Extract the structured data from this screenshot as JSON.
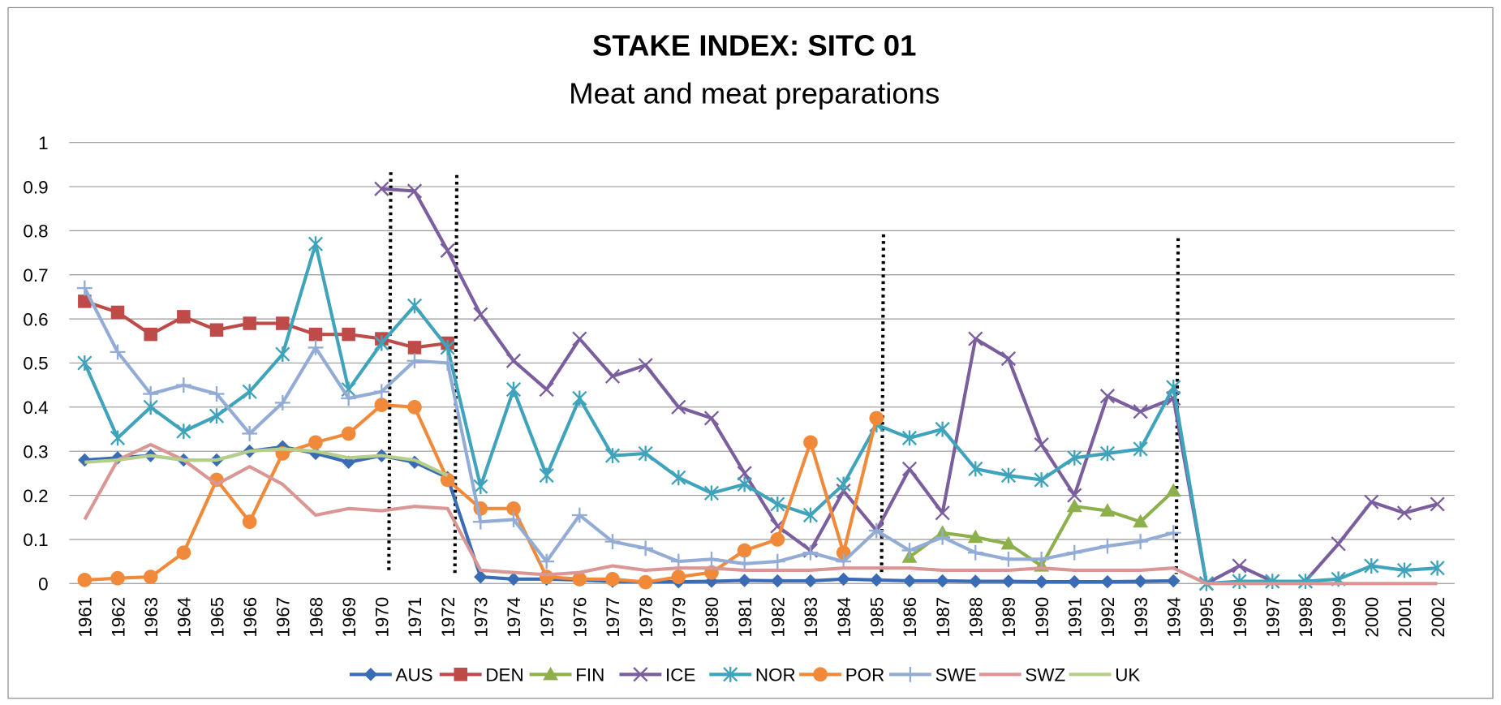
{
  "chart_data": {
    "type": "line",
    "title": "STAKE INDEX: SITC 01",
    "subtitle": "Meat and meat preparations",
    "categories": [
      "1961",
      "1962",
      "1963",
      "1964",
      "1965",
      "1966",
      "1967",
      "1968",
      "1969",
      "1970",
      "1971",
      "1972",
      "1973",
      "1974",
      "1975",
      "1976",
      "1977",
      "1978",
      "1979",
      "1980",
      "1981",
      "1982",
      "1983",
      "1984",
      "1985",
      "1986",
      "1987",
      "1988",
      "1989",
      "1990",
      "1991",
      "1992",
      "1993",
      "1994",
      "1995",
      "1996",
      "1997",
      "1998",
      "1999",
      "2000",
      "2001",
      "2002"
    ],
    "ylim": [
      0,
      1
    ],
    "yticks": [
      0,
      0.1,
      0.2,
      0.3,
      0.4,
      0.5,
      0.6,
      0.7,
      0.8,
      0.9,
      1
    ],
    "grid": true,
    "legend": "bottom",
    "series": [
      {
        "name": "AUS",
        "color": "#3a6bb5",
        "marker": "diamond",
        "values": [
          0.28,
          0.285,
          0.29,
          0.28,
          0.28,
          0.3,
          0.31,
          0.295,
          0.275,
          0.29,
          0.275,
          0.24,
          0.015,
          0.01,
          0.01,
          0.008,
          0.005,
          0.004,
          0.004,
          0.005,
          0.007,
          0.006,
          0.006,
          0.01,
          0.008,
          0.006,
          0.006,
          0.005,
          0.005,
          0.004,
          0.004,
          0.004,
          0.005,
          0.006,
          null,
          null,
          null,
          null,
          null,
          null,
          null,
          null
        ]
      },
      {
        "name": "DEN",
        "color": "#be4b48",
        "marker": "square",
        "values": [
          0.64,
          0.615,
          0.565,
          0.605,
          0.575,
          0.59,
          0.59,
          0.565,
          0.565,
          0.555,
          0.535,
          0.545,
          null,
          null,
          null,
          null,
          null,
          null,
          null,
          null,
          null,
          null,
          null,
          null,
          null,
          null,
          null,
          null,
          null,
          null,
          null,
          null,
          null,
          null,
          null,
          null,
          null,
          null,
          null,
          null,
          null,
          null
        ]
      },
      {
        "name": "FIN",
        "color": "#8db04d",
        "marker": "triangle",
        "values": [
          null,
          null,
          null,
          null,
          null,
          null,
          null,
          null,
          null,
          null,
          null,
          null,
          null,
          null,
          null,
          null,
          null,
          null,
          null,
          null,
          null,
          null,
          null,
          null,
          null,
          0.06,
          0.115,
          0.105,
          0.09,
          0.04,
          0.175,
          0.165,
          0.14,
          0.21,
          null,
          null,
          null,
          null,
          null,
          null,
          null,
          null
        ]
      },
      {
        "name": "ICE",
        "color": "#7b5e9e",
        "marker": "x",
        "values": [
          null,
          null,
          null,
          null,
          null,
          null,
          null,
          null,
          null,
          0.895,
          0.89,
          0.755,
          0.61,
          0.505,
          0.44,
          0.555,
          0.47,
          0.495,
          0.4,
          0.375,
          0.25,
          0.13,
          0.075,
          0.21,
          0.12,
          0.26,
          0.16,
          0.555,
          0.51,
          0.315,
          0.2,
          0.425,
          0.39,
          0.42,
          0,
          0.04,
          0.005,
          0.005,
          0.09,
          0.185,
          0.16,
          0.18
        ]
      },
      {
        "name": "NOR",
        "color": "#3fa3bb",
        "marker": "asterisk",
        "values": [
          0.5,
          0.33,
          0.4,
          0.345,
          0.38,
          0.435,
          0.52,
          0.77,
          0.44,
          0.545,
          0.63,
          0.535,
          0.22,
          0.44,
          0.245,
          0.42,
          0.29,
          0.295,
          0.24,
          0.205,
          0.225,
          0.18,
          0.155,
          0.225,
          0.36,
          0.33,
          0.35,
          0.26,
          0.245,
          0.235,
          0.285,
          0.295,
          0.305,
          0.445,
          0,
          0.005,
          0.005,
          0.005,
          0.01,
          0.04,
          0.03,
          0.035
        ]
      },
      {
        "name": "POR",
        "color": "#f08a3a",
        "marker": "circle",
        "values": [
          0.008,
          0.012,
          0.015,
          0.07,
          0.235,
          0.14,
          0.295,
          0.32,
          0.34,
          0.405,
          0.4,
          0.235,
          0.17,
          0.17,
          0.015,
          0.01,
          0.01,
          0.003,
          0.015,
          0.025,
          0.075,
          0.1,
          0.32,
          0.07,
          0.375,
          null,
          null,
          null,
          null,
          null,
          null,
          null,
          null,
          null,
          null,
          null,
          null,
          null,
          null,
          null,
          null,
          null
        ]
      },
      {
        "name": "SWE",
        "color": "#93acd6",
        "marker": "plus",
        "values": [
          0.67,
          0.525,
          0.43,
          0.45,
          0.43,
          0.34,
          0.41,
          0.535,
          0.42,
          0.435,
          0.505,
          0.5,
          0.14,
          0.145,
          0.05,
          0.155,
          0.095,
          0.08,
          0.05,
          0.055,
          0.045,
          0.05,
          0.07,
          0.05,
          0.12,
          0.075,
          0.105,
          0.07,
          0.055,
          0.055,
          0.07,
          0.085,
          0.095,
          0.115,
          null,
          null,
          null,
          null,
          null,
          null,
          null,
          null
        ]
      },
      {
        "name": "SWZ",
        "color": "#d99694",
        "marker": "none",
        "values": [
          0.145,
          0.28,
          0.315,
          0.28,
          0.225,
          0.265,
          0.225,
          0.155,
          0.17,
          0.165,
          0.175,
          0.17,
          0.03,
          0.025,
          0.02,
          0.025,
          0.04,
          0.03,
          0.035,
          0.035,
          0.03,
          0.03,
          0.03,
          0.035,
          0.035,
          0.035,
          0.03,
          0.03,
          0.03,
          0.035,
          0.03,
          0.03,
          0.03,
          0.035,
          0,
          0,
          0,
          0,
          0,
          0,
          0,
          0
        ]
      },
      {
        "name": "UK",
        "color": "#b5cf8a",
        "marker": "none",
        "values": [
          0.275,
          0.28,
          0.29,
          0.28,
          0.28,
          0.3,
          0.305,
          0.3,
          0.285,
          0.29,
          0.28,
          0.245,
          null,
          null,
          null,
          null,
          null,
          null,
          null,
          null,
          null,
          null,
          null,
          null,
          null,
          null,
          null,
          null,
          null,
          null,
          null,
          null,
          null,
          null,
          null,
          null,
          null,
          null,
          null,
          null,
          null,
          null
        ]
      }
    ]
  }
}
